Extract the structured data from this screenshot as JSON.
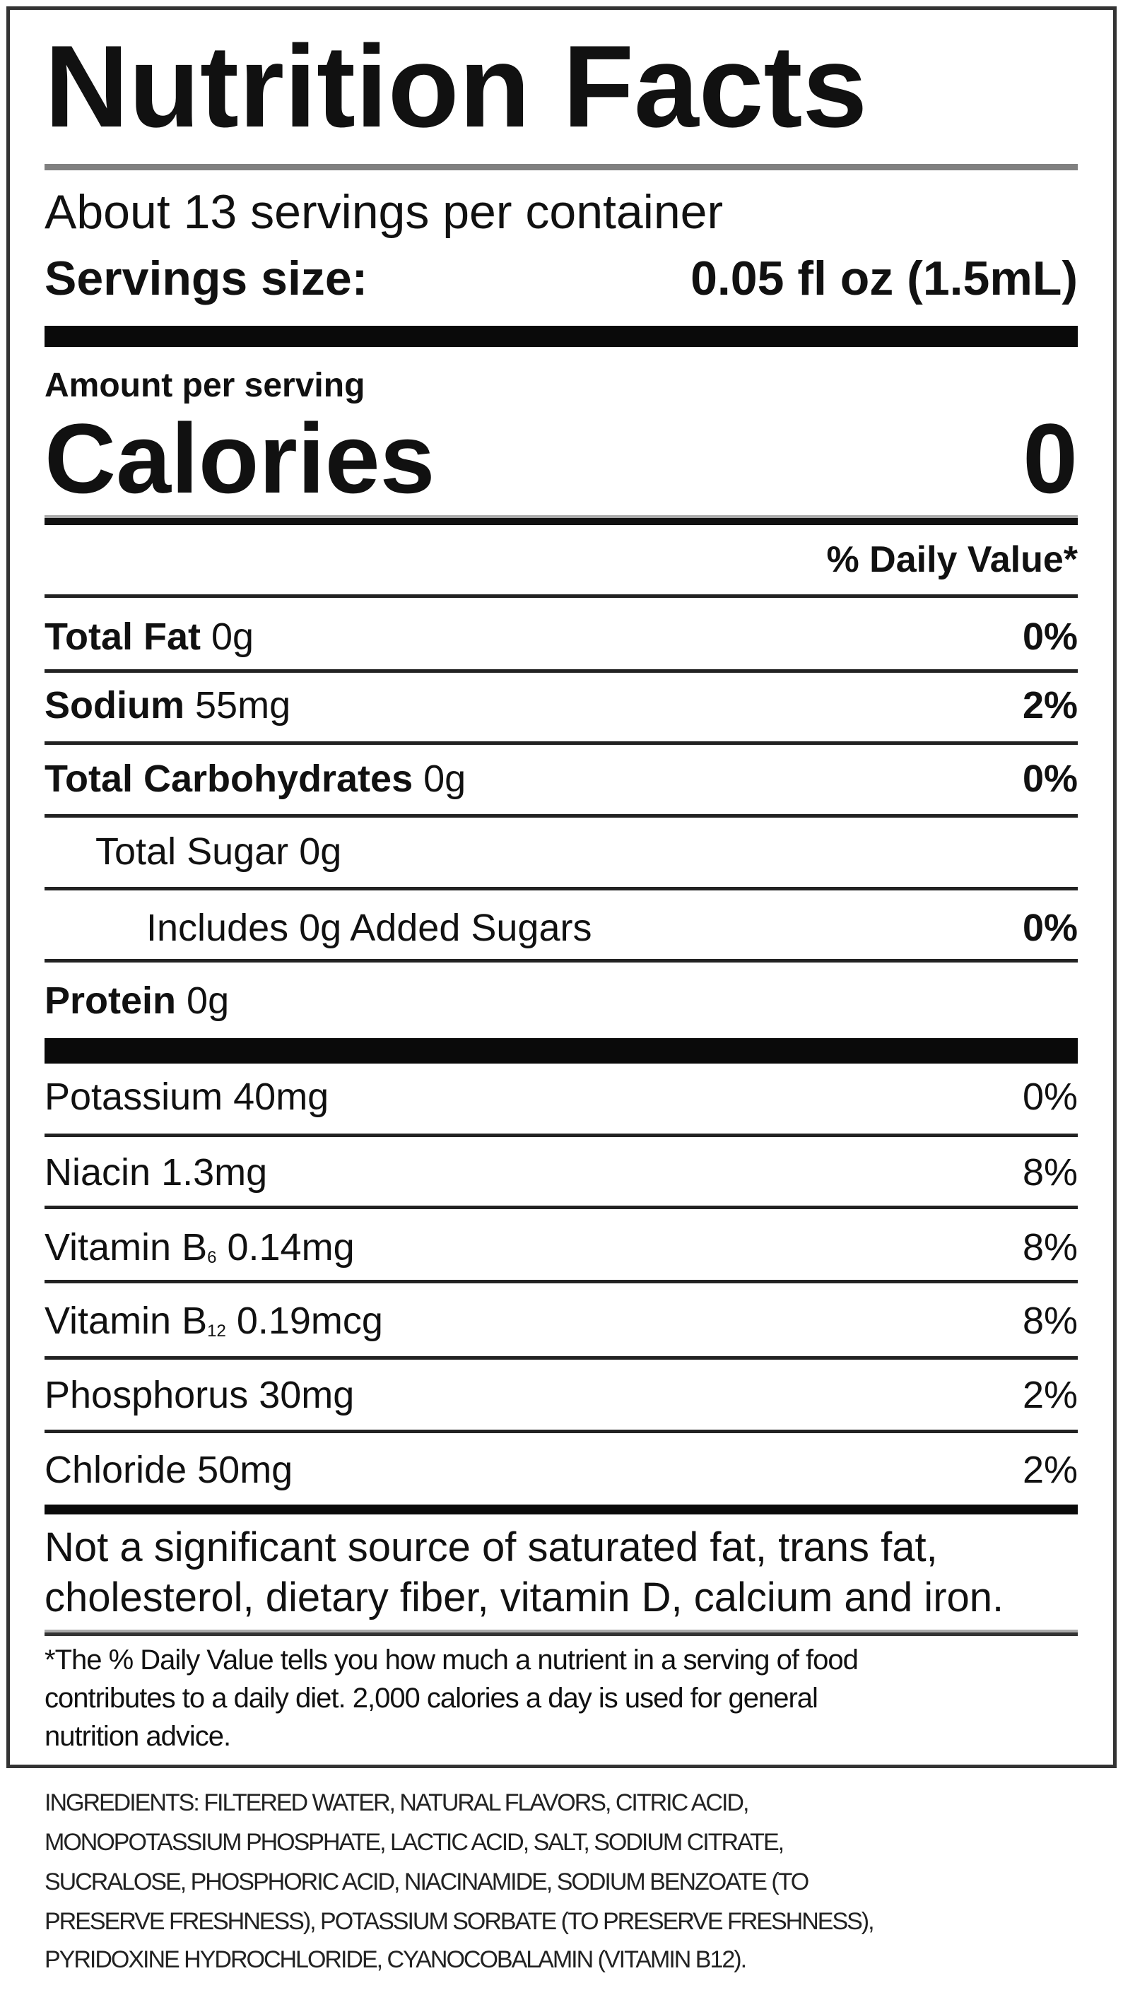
{
  "label": {
    "title": "Nutrition Facts",
    "servings_per_container": "About 13 servings per container",
    "serving_size_label": "Servings size:",
    "serving_size_value": "0.05 fl oz (1.5mL)",
    "amount_per_serving": "Amount per serving",
    "calories_label": "Calories",
    "calories_value": "0",
    "daily_value_header": "% Daily Value*",
    "nutrients": [
      {
        "name": "Total Fat",
        "amount": "0g",
        "dv": "0%"
      },
      {
        "name": "Sodium",
        "amount": "55mg",
        "dv": "2%"
      },
      {
        "name": "Total Carbohydrates",
        "amount": "0g",
        "dv": "0%"
      },
      {
        "name": "Total Sugar",
        "amount": "0g",
        "dv": ""
      },
      {
        "name": "Includes 0g Added Sugars",
        "amount": "",
        "dv": "0%"
      },
      {
        "name": "Protein",
        "amount": "0g",
        "dv": ""
      }
    ],
    "vitamins": [
      {
        "name": "Potassium",
        "sub": "",
        "amount": "40mg",
        "dv": "0%"
      },
      {
        "name": "Niacin",
        "sub": "",
        "amount": "1.3mg",
        "dv": "8%"
      },
      {
        "name": "Vitamin B",
        "sub": "6",
        "amount": "0.14mg",
        "dv": "8%"
      },
      {
        "name": "Vitamin B",
        "sub": "12",
        "amount": "0.19mcg",
        "dv": "8%"
      },
      {
        "name": "Phosphorus",
        "sub": "",
        "amount": "30mg",
        "dv": "2%"
      },
      {
        "name": "Chloride",
        "sub": "",
        "amount": "50mg",
        "dv": "2%"
      }
    ],
    "not_significant": [
      "Not a significant source of saturated fat, trans fat,",
      "cholesterol, dietary fiber, vitamin D, calcium and iron."
    ],
    "footnote": [
      "*The % Daily Value tells you how much a nutrient in a serving of food",
      "contributes to a daily diet. 2,000 calories a day is used for general",
      "nutrition advice."
    ]
  },
  "ingredients": [
    "INGREDIENTS: FILTERED WATER, NATURAL FLAVORS, CITRIC ACID,",
    "MONOPOTASSIUM PHOSPHATE, LACTIC ACID, SALT, SODIUM CITRATE,",
    "SUCRALOSE, PHOSPHORIC ACID, NIACINAMIDE, SODIUM BENZOATE (TO",
    "PRESERVE FRESHNESS), POTASSIUM SORBATE (TO PRESERVE FRESHNESS),",
    "PYRIDOXINE HYDROCHLORIDE, CYANOCOBALAMIN (VITAMIN B12)."
  ]
}
